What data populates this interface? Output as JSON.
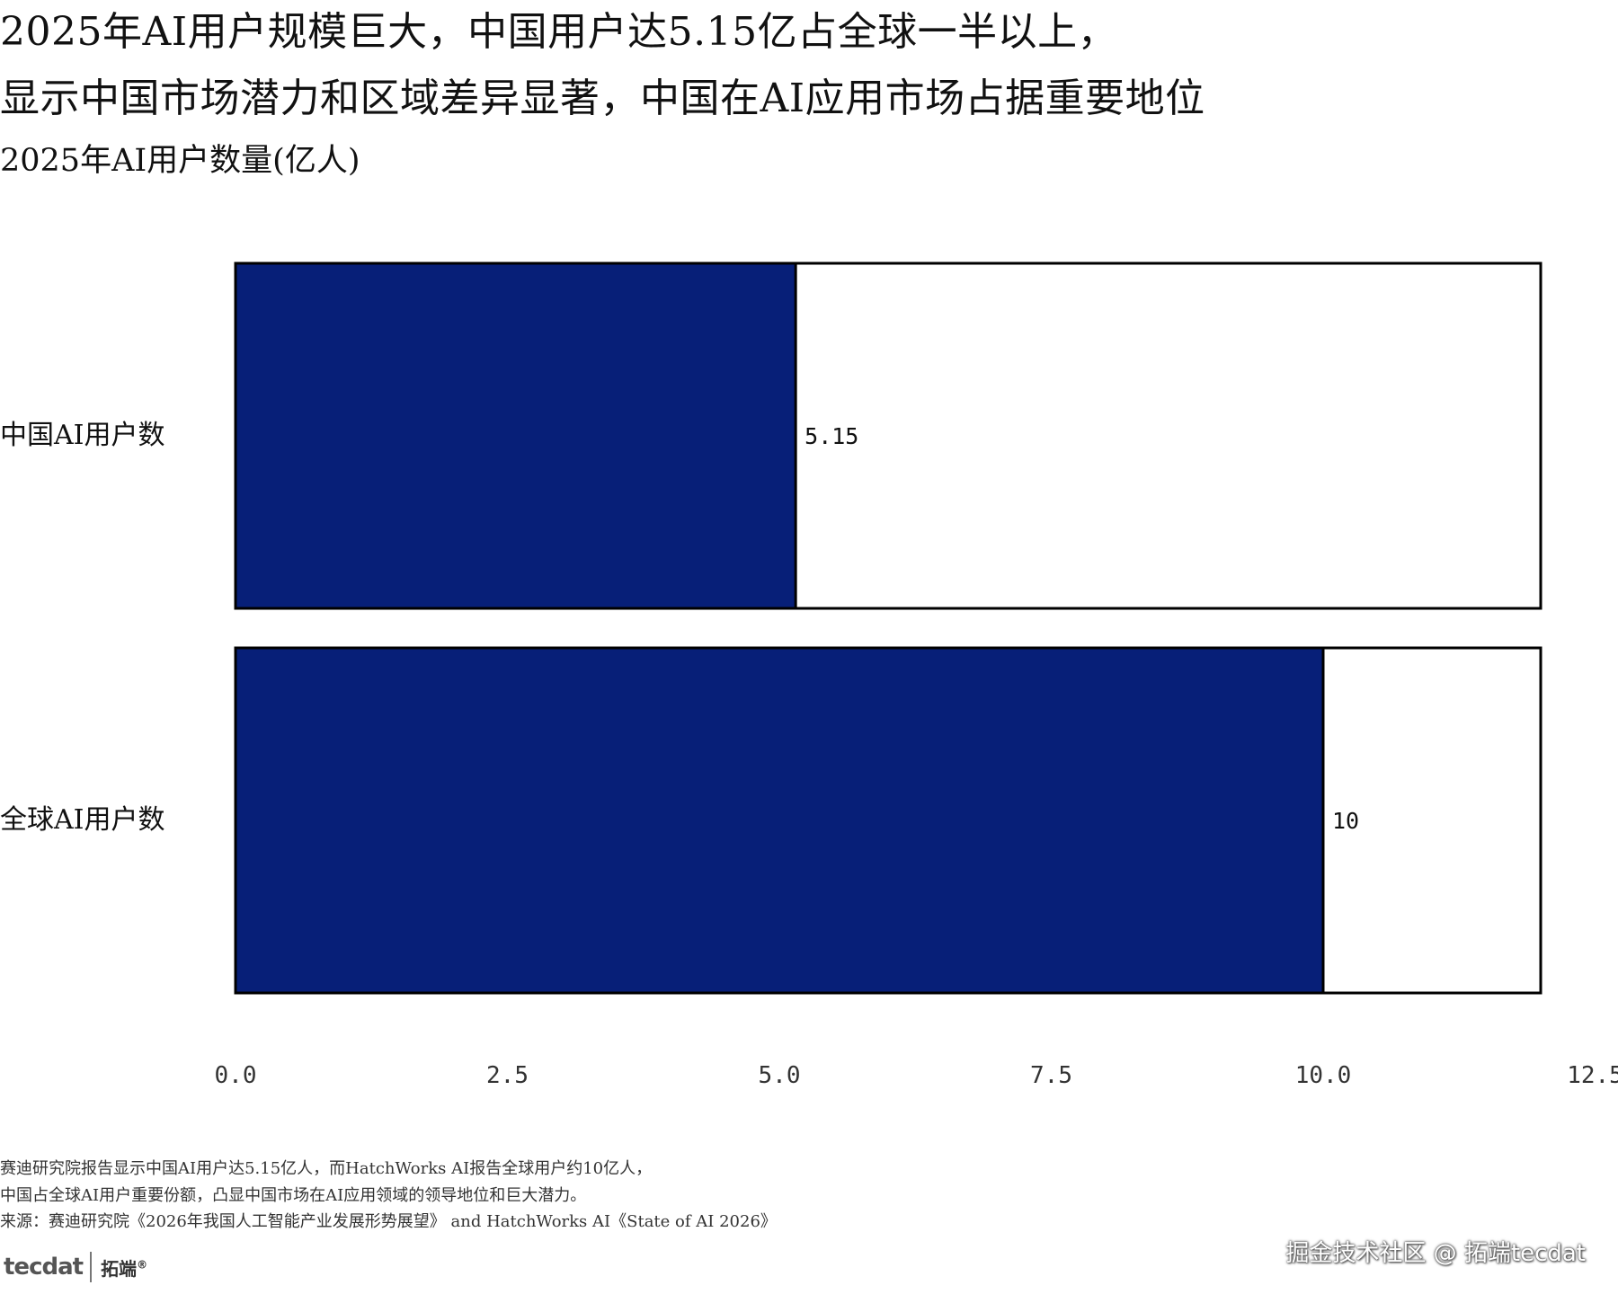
{
  "chart_data": {
    "type": "bar",
    "orientation": "horizontal",
    "title_line1": "2025年AI用户规模巨大，中国用户达5.15亿占全球一半以上，",
    "title_line2": "显示中国市场潜力和区域差异显著，中国在AI应用市场占据重要地位",
    "subtitle": "2025年AI用户数量(亿人)",
    "categories": [
      "中国AI用户数",
      "全球AI用户数"
    ],
    "values": [
      5.15,
      10
    ],
    "value_labels": [
      "5.15",
      "10"
    ],
    "xlim": [
      0,
      12.5
    ],
    "ticks": [
      0,
      2.5,
      5,
      7.5,
      10,
      12.5
    ],
    "tick_labels": [
      "0.0",
      "2.5",
      "5.0",
      "7.5",
      "10.0",
      "12.5"
    ],
    "grid": false,
    "legend": "none",
    "colors": {
      "bar_fill": "#071f78",
      "bar_outline": "#000000",
      "background": "#ffffff"
    }
  },
  "footnote": {
    "line1": "赛迪研究院报告显示中国AI用户达5.15亿人，而HatchWorks AI报告全球用户约10亿人，",
    "line2": "中国占全球AI用户重要份额，凸显中国市场在AI应用领域的领导地位和巨大潜力。",
    "line3": "来源：赛迪研究院《2026年我国人工智能产业发展形势展望》 and HatchWorks AI《State of AI 2026》"
  },
  "watermark": "掘金技术社区 @ 拓端tecdat",
  "logo": {
    "mark": "tecdat",
    "cn": "拓端",
    "reg": "®"
  }
}
